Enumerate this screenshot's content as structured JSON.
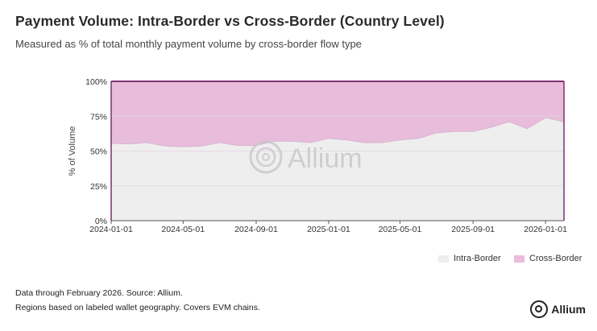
{
  "title": "Payment Volume: Intra-Border vs Cross-Border (Country Level)",
  "subtitle": "Measured as % of total monthly payment volume by cross-border flow type",
  "footnotes": [
    "Data through February 2026. Source: Allium.",
    "Regions based on labeled wallet geography. Covers EVM chains."
  ],
  "brand": {
    "name": "Allium",
    "watermark": "Allium"
  },
  "colors": {
    "intra": "#efeeef",
    "cross": "#e7bddb",
    "line": "#7f2f73",
    "grid": "#e0d5df"
  },
  "chart_data": {
    "type": "area",
    "stacked": true,
    "ylabel": "% of Volume",
    "ylim": [
      0,
      100
    ],
    "yticks": [
      "0%",
      "25%",
      "50%",
      "75%",
      "100%"
    ],
    "xticks": [
      "2024-01-01",
      "2024-05-01",
      "2024-09-01",
      "2025-01-01",
      "2025-05-01",
      "2025-09-01",
      "2026-01-01"
    ],
    "x": [
      "2024-01-01",
      "2024-02-01",
      "2024-03-01",
      "2024-04-01",
      "2024-05-01",
      "2024-06-01",
      "2024-07-01",
      "2024-08-01",
      "2024-09-01",
      "2024-10-01",
      "2024-11-01",
      "2024-12-01",
      "2025-01-01",
      "2025-02-01",
      "2025-03-01",
      "2025-04-01",
      "2025-05-01",
      "2025-06-01",
      "2025-07-01",
      "2025-08-01",
      "2025-09-01",
      "2025-10-01",
      "2025-11-01",
      "2025-12-01",
      "2026-01-01",
      "2026-02-01"
    ],
    "series": [
      {
        "name": "Intra-Border",
        "values": [
          55.5,
          55,
          56,
          53.5,
          53,
          53.5,
          56,
          54,
          54,
          57,
          57,
          56,
          59,
          58,
          56,
          56,
          58,
          59,
          63,
          64,
          64,
          67,
          71,
          66,
          74,
          71
        ]
      },
      {
        "name": "Cross-Border",
        "values": [
          44.5,
          45,
          44,
          46.5,
          47,
          46.5,
          44,
          46,
          46,
          43,
          43,
          44,
          41,
          42,
          44,
          44,
          42,
          41,
          37,
          36,
          36,
          33,
          29,
          34,
          26,
          29
        ]
      }
    ],
    "legend_position": "bottom-right",
    "grid": true
  }
}
